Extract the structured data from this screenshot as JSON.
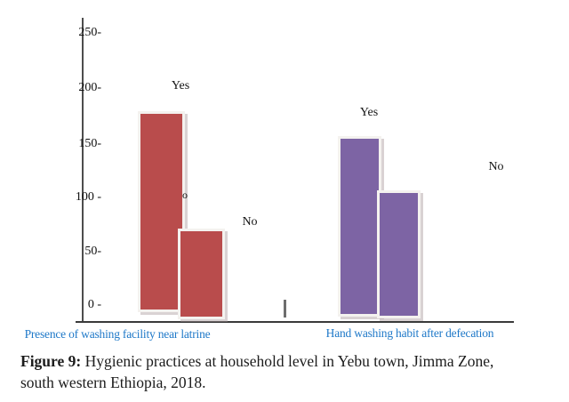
{
  "caption": {
    "bold": "Figure 9:",
    "line1_rest": " Hygienic practices at household level in Yebu town, Jimma Zone,",
    "line2": "south western Ethiopia, 2018."
  },
  "chart_data": {
    "type": "bar",
    "title": "",
    "grid": false,
    "legend": "none",
    "y_axis": {
      "tick_labels": [
        "250-",
        "200-",
        "150-",
        "100 -",
        "50-",
        "0 -"
      ],
      "tick_values": [
        250,
        200,
        150,
        100,
        50,
        0
      ],
      "range": [
        0,
        250
      ]
    },
    "groups": [
      {
        "label": "Presence of washing facility near latrine",
        "color": "#b94c4c",
        "bars": [
          {
            "category": "Yes",
            "value": 178
          },
          {
            "category": "No",
            "value": 70
          }
        ]
      },
      {
        "label": "Hand washing habit after defecation",
        "color": "#7d64a4",
        "bars": [
          {
            "category": "Yes",
            "value": 155
          },
          {
            "category": "No",
            "value": 105
          }
        ]
      }
    ],
    "stray_mark": "o",
    "colors": {
      "group_label_text": "#1e78c8",
      "axis_line": "#4d4d4d",
      "bar_border": "#f4f2ef"
    }
  }
}
